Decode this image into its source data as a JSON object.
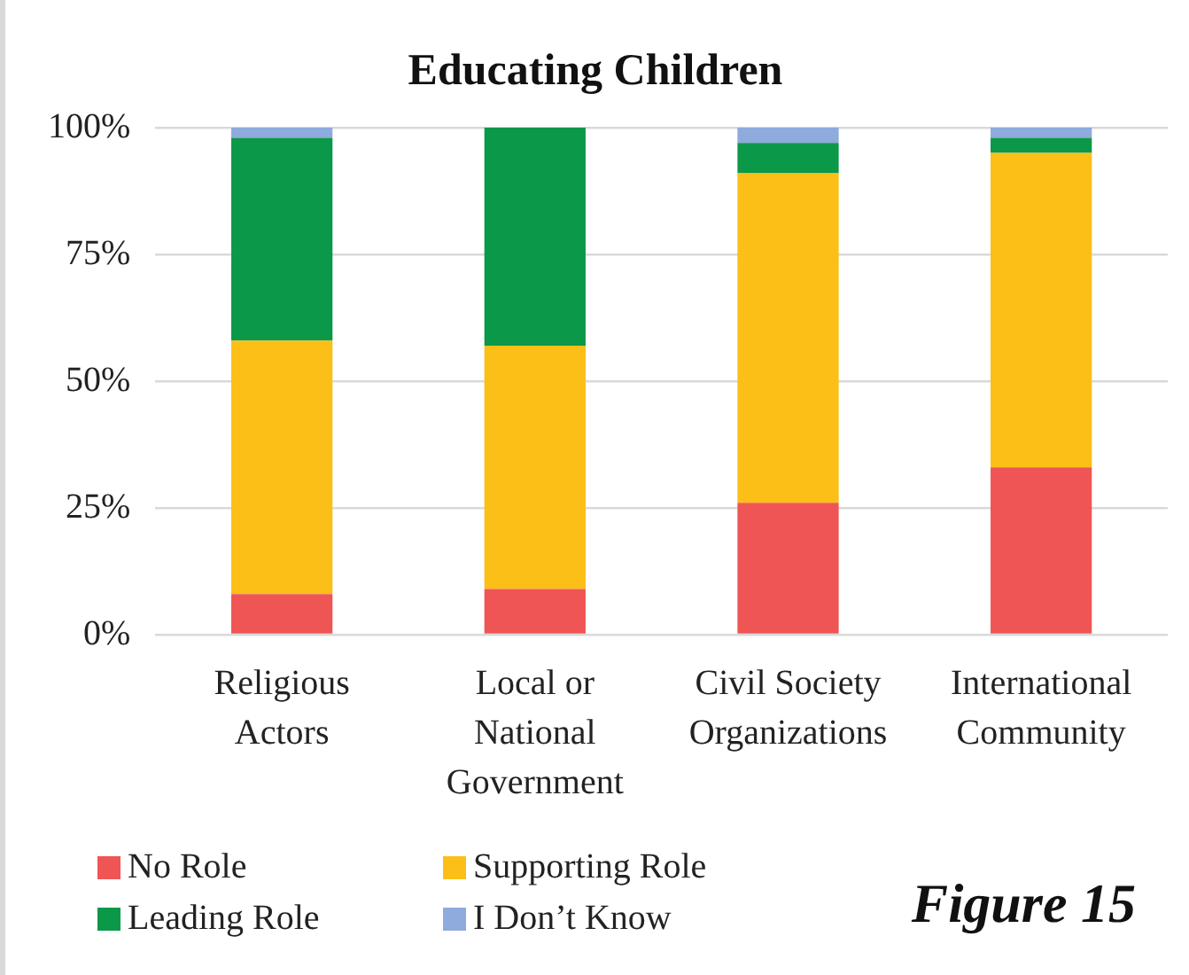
{
  "chart_data": {
    "type": "bar",
    "title": "Educating Children",
    "categories": [
      "Religious Actors",
      "Local or National Government",
      "Civil Society Organizations",
      "International Community"
    ],
    "stacked": true,
    "ylim": [
      0,
      100
    ],
    "yticks": [
      {
        "value": 0,
        "label": "0%"
      },
      {
        "value": 25,
        "label": "25%"
      },
      {
        "value": 50,
        "label": "50%"
      },
      {
        "value": 75,
        "label": "75%"
      },
      {
        "value": 100,
        "label": "100%"
      }
    ],
    "grid": "y",
    "legend": "bottom",
    "annotations": [
      "Figure 15"
    ],
    "series": [
      {
        "name": "No Role",
        "color": "#ef5555",
        "values": [
          8,
          9,
          26,
          33
        ]
      },
      {
        "name": "Supporting Role",
        "color": "#fbbf17",
        "values": [
          50,
          48,
          65,
          62
        ]
      },
      {
        "name": "Leading Role",
        "color": "#0c9849",
        "values": [
          40,
          43,
          6,
          3
        ]
      },
      {
        "name": "I Don’t Know",
        "color": "#8faadc",
        "values": [
          2,
          0,
          3,
          2
        ]
      }
    ]
  }
}
